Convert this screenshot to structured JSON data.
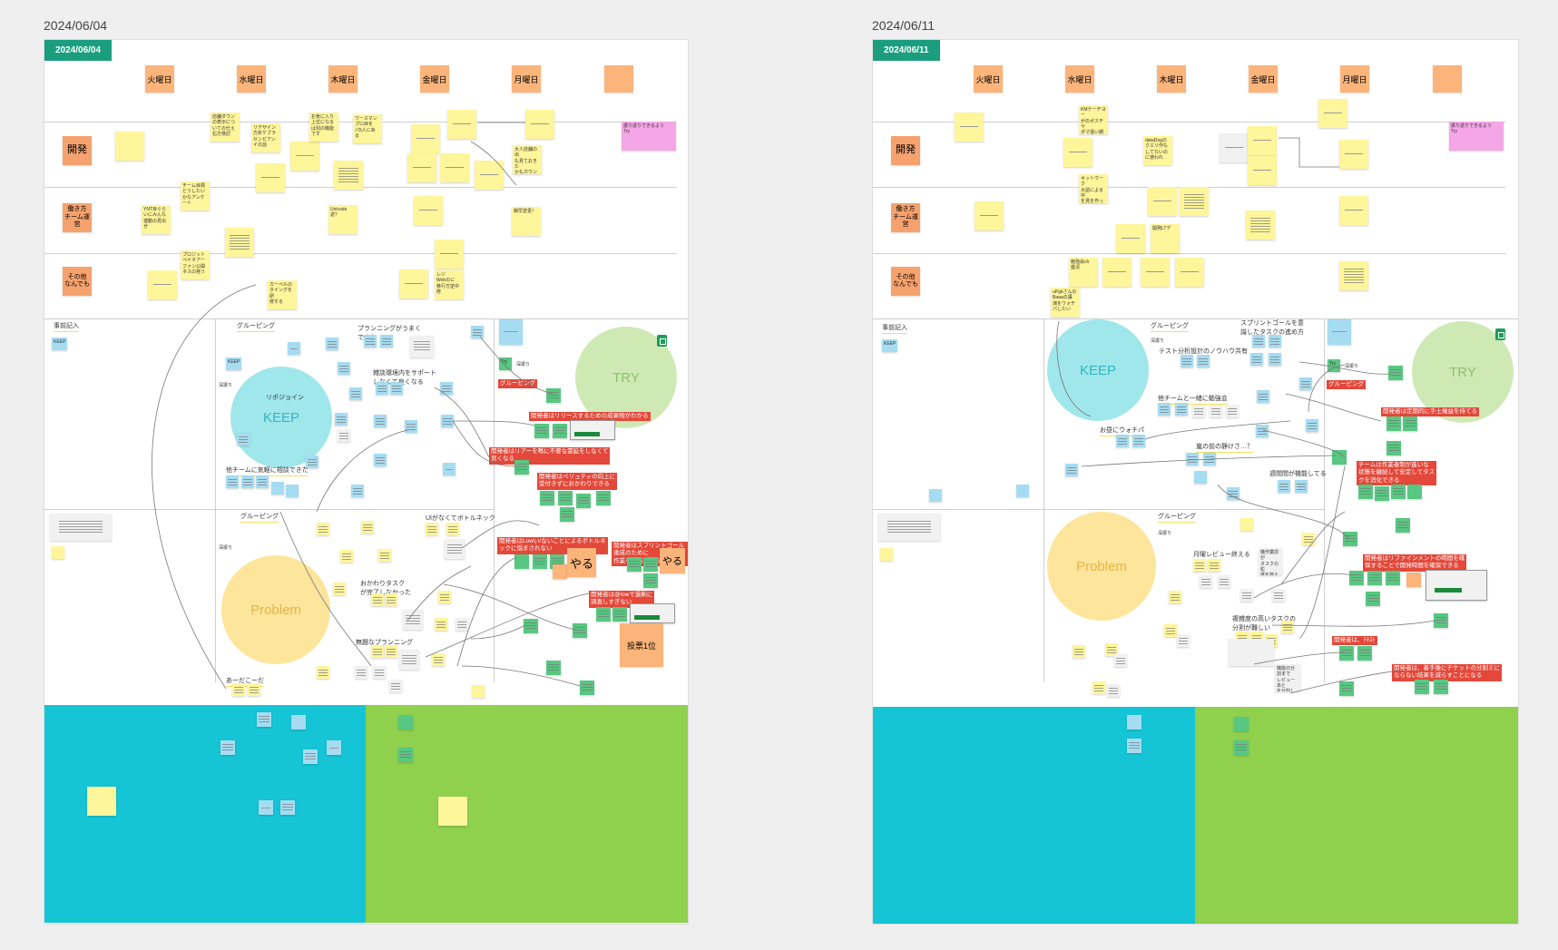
{
  "board_left": {
    "date_label": "2024/06/04",
    "tag": "2024/06/04",
    "days": [
      "火曜日",
      "水曜日",
      "木曜日",
      "金曜日",
      "月曜日"
    ],
    "categories": {
      "dev": "開発",
      "team": "働き方\nチーム運営",
      "other": "その他\nなんでも"
    },
    "notes": {
      "n1": "店舗ダウン\nの表示につ\nいての仕え\n右方検討",
      "n2": "リデザイン\n方針ケブラ\nセンピアン\nイの話",
      "n3": "お気に入り\n上位になる\nは別の機能\nです",
      "n4": "ワースマン\nプロ目を\nパ5人にあ\nる",
      "n5": "チーム目標\nどうしたい\nかなアンケ\nート",
      "n6": "YNT目ぐら\nいにみんな\n連動の見出\nぜ",
      "n7": "Unicode返？",
      "n8": "朝早変更！",
      "n9": "大人店舗の出\nも見ておきた\nかもカウンソ\nスする？",
      "n10": "プロジット\nペイネアー\nファン公開\nネスの発う",
      "n11": "カーペルの\nタイングを研\n修する",
      "n12": "レジ\nWebのに\n移行方逆中\n修",
      "pink": "振り返りできるよう\nTry"
    },
    "sections": {
      "prefill": "事前記入",
      "grouping1": "グルーピング",
      "grouping2": "グルーピング",
      "grouping3": "グルーピング"
    },
    "labels": {
      "keep_small": "KEEP",
      "keep": "KEEP",
      "problem": "Problem",
      "try": "TRY",
      "try_small": "Try",
      "kekka": "深振り",
      "kekka2": "深振り",
      "planning": "プランニングがうまく\nできた",
      "review": "雑談環境内をサポート\nしなくて良くなる",
      "migration": "リポジョイン",
      "other_team": "他チームに気軽に相談できた",
      "bottleneck": "UIがなくてボトルネック",
      "okawari": "おかわりタスク\nが完了しなかった",
      "planning2": "無題なプランニング",
      "akadashi": "あーだこーだ",
      "yaru": "やる",
      "yaru2": "やる",
      "vote": "投票1位"
    },
    "red_labels": [
      "開発者はリリースするための成果物がわかる",
      "開発者はリアーを鳴に不要な霊延をしなくて\n良くなる",
      "開発者はペリュティの向上に\n受付きずにおかわりできる",
      "開発者はLowい/ないことによるボトルネ\nックに悩まされない",
      "開発者はスプリントゴール達成のために\n作業を実施できる",
      "開発者は@lowで過剰に\n調査しすぎない"
    ],
    "grouping_tag": "グルーピング"
  },
  "board_right": {
    "date_label": "2024/06/11",
    "tag": "2024/06/11",
    "days": [
      "火曜日",
      "水曜日",
      "木曜日",
      "金曜日",
      "月曜日"
    ],
    "categories": {
      "dev": "開発",
      "team": "働き方\nチーム運営",
      "other": "その他\nなんでも"
    },
    "notes": {
      "n1": "KMテーチヨー\nがのポスチヤ\nポマ違い期け\n評価く",
      "n2": "dataDogの\nクエリ作も\nしてないの\nに使われ",
      "n3": "キットウーク\n大語による中\nを見を作ったが\nいけれる",
      "n4": "開発LTデ",
      "n5": "勉強会ch\n盛況",
      "n6": "uPgkさんの\nBaaaの講\n演をウォチ\nパしたい",
      "pink": "振り返りできるよう\nTry"
    },
    "sections": {
      "prefill": "事前記入",
      "grouping1": "グルーピング",
      "grouping2": "グルーピング"
    },
    "labels": {
      "keep_small": "KEEP",
      "keep": "KEEP",
      "problem": "Problem",
      "try": "TRY",
      "try_small": "Try",
      "kekka": "深振り",
      "kekka2": "深振り",
      "sprint_goal": "スプリントゴールを意\n識したタスクの進め方",
      "test_dev": "テスト分析設計のノウハウ共有",
      "other_team": "他チームと一緒に勉強会",
      "watch": "お昼にウォチパ",
      "before_fire": "嵐の前の静けさ…？",
      "review_cycle": "週間間が機能してる",
      "monday_review": "月曜レビュー終える",
      "difficult": "複雑度の高いタスクの\n分割が難しい",
      "note_a": "機作業前が\nタスクの粒\n度を揃える\nように…",
      "note_b": "機能の分割まで\nレビューあと\nを分割して…"
    },
    "red_labels": [
      "開発者は定期的に手土権益を持てる",
      "チームは作業者制が進いな\n状態を継続して安定してタス\nクを消化できる",
      "開発者はリファインメントの時間を確\n保することで開発時間を確保できる",
      "開発者は、ﾃｷｽﾄ",
      "開発者は、着手後にチケットの分割ミに\nならない結果を減らすことになる"
    ],
    "grouping_tag": "グルーピング"
  },
  "colors": {
    "tag": "#1a9e7e",
    "day": "#fbb47a",
    "sticky_yellow": "#fff59b",
    "sticky_blue": "#a6dcf1",
    "sticky_green": "#58c782",
    "keep": "#9fe7ea",
    "problem": "#fde59b",
    "try": "#cfe9b5",
    "cyan_area": "#15c5d6",
    "green_area": "#8fd04d",
    "red_label": "#e3483a",
    "pink": "#f5a6e6"
  }
}
